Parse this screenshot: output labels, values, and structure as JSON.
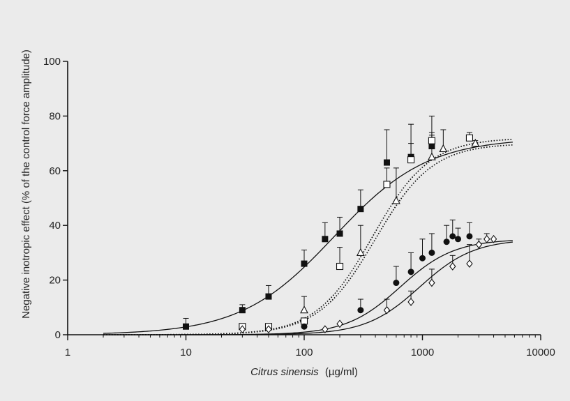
{
  "chart_data": {
    "type": "scatter",
    "xscale": "log",
    "xlim": [
      1,
      10000
    ],
    "ylim": [
      0,
      100
    ],
    "xticks": [
      "1",
      "10",
      "100",
      "1000",
      "10000"
    ],
    "yticks": [
      "0",
      "20",
      "40",
      "60",
      "80",
      "100"
    ],
    "xlabel_italic": "Citrus sinensis",
    "xlabel_unit": "(µg/ml)",
    "ylabel": "Negative inotropic effect (% of the control force amplitude)",
    "grid": false,
    "legend": "none",
    "series": [
      {
        "marker": "filled-square",
        "points": [
          {
            "x": 10,
            "y": 3,
            "err": 3
          },
          {
            "x": 30,
            "y": 9,
            "err": 2
          },
          {
            "x": 50,
            "y": 14,
            "err": 4
          },
          {
            "x": 100,
            "y": 26,
            "err": 5
          },
          {
            "x": 150,
            "y": 35,
            "err": 6
          },
          {
            "x": 200,
            "y": 37,
            "err": 6
          },
          {
            "x": 300,
            "y": 46,
            "err": 7
          },
          {
            "x": 500,
            "y": 63,
            "err": 12
          },
          {
            "x": 800,
            "y": 65,
            "err": 12
          },
          {
            "x": 1200,
            "y": 69,
            "err": 11
          }
        ],
        "fit": {
          "top": 72,
          "ec50": 180,
          "hill": 1.1,
          "line": "solid"
        }
      },
      {
        "marker": "open-square",
        "points": [
          {
            "x": 30,
            "y": 3,
            "err": 0
          },
          {
            "x": 50,
            "y": 3,
            "err": 0
          },
          {
            "x": 100,
            "y": 5,
            "err": 0
          },
          {
            "x": 200,
            "y": 25,
            "err": 7
          },
          {
            "x": 500,
            "y": 55,
            "err": 6
          },
          {
            "x": 800,
            "y": 64,
            "err": 6
          },
          {
            "x": 1200,
            "y": 71,
            "err": 3
          },
          {
            "x": 2500,
            "y": 72,
            "err": 2
          }
        ],
        "fit": {
          "top": 72,
          "ec50": 380,
          "hill": 1.8,
          "line": "dotted"
        }
      },
      {
        "marker": "open-triangle",
        "points": [
          {
            "x": 100,
            "y": 9,
            "err": 5
          },
          {
            "x": 300,
            "y": 30,
            "err": 10
          },
          {
            "x": 600,
            "y": 49,
            "err": 12
          },
          {
            "x": 1200,
            "y": 65,
            "err": 8
          },
          {
            "x": 1500,
            "y": 68,
            "err": 7
          },
          {
            "x": 2800,
            "y": 70,
            "err": 1
          }
        ],
        "fit": {
          "top": 70,
          "ec50": 400,
          "hill": 1.8,
          "line": "dotted"
        }
      },
      {
        "marker": "filled-circle",
        "points": [
          {
            "x": 100,
            "y": 3,
            "err": 0
          },
          {
            "x": 300,
            "y": 9,
            "err": 4
          },
          {
            "x": 600,
            "y": 19,
            "err": 6
          },
          {
            "x": 800,
            "y": 23,
            "err": 7
          },
          {
            "x": 1000,
            "y": 28,
            "err": 7
          },
          {
            "x": 1200,
            "y": 30,
            "err": 7
          },
          {
            "x": 1600,
            "y": 34,
            "err": 6
          },
          {
            "x": 1800,
            "y": 36,
            "err": 6
          },
          {
            "x": 2000,
            "y": 35,
            "err": 4
          },
          {
            "x": 2500,
            "y": 36,
            "err": 5
          }
        ],
        "fit": {
          "top": 35,
          "ec50": 650,
          "hill": 1.9,
          "line": "solid"
        }
      },
      {
        "marker": "open-diamond",
        "points": [
          {
            "x": 30,
            "y": 2,
            "err": 0
          },
          {
            "x": 50,
            "y": 2,
            "err": 0
          },
          {
            "x": 150,
            "y": 2,
            "err": 0
          },
          {
            "x": 200,
            "y": 4,
            "err": 0
          },
          {
            "x": 500,
            "y": 9,
            "err": 4
          },
          {
            "x": 800,
            "y": 12,
            "err": 4
          },
          {
            "x": 1200,
            "y": 19,
            "err": 5
          },
          {
            "x": 1800,
            "y": 25,
            "err": 4
          },
          {
            "x": 2500,
            "y": 26,
            "err": 7
          },
          {
            "x": 3000,
            "y": 33,
            "err": 2
          },
          {
            "x": 3500,
            "y": 35,
            "err": 2
          },
          {
            "x": 4000,
            "y": 35,
            "err": 0
          }
        ],
        "fit": {
          "top": 35,
          "ec50": 950,
          "hill": 1.9,
          "line": "solid"
        }
      }
    ]
  }
}
